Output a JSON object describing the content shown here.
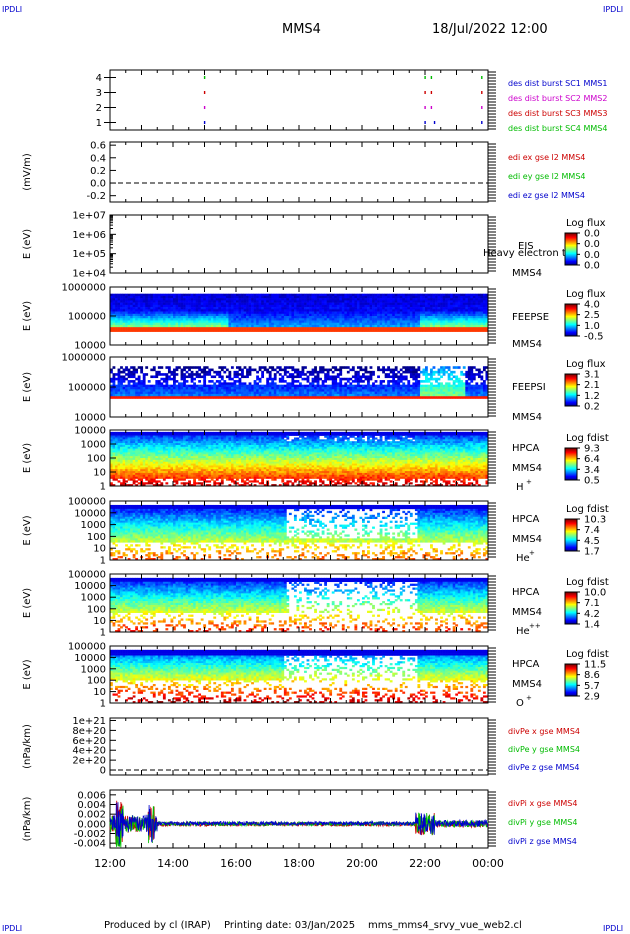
{
  "header": {
    "corner_tl": "IPDLI",
    "corner_tr": "IPDLI",
    "corner_bl": "IPDLI",
    "corner_br": "IPDLI",
    "spacecraft": "MMS4",
    "datetime": "18/Jul/2022 12:00"
  },
  "footer": {
    "produced": "Produced by cl (IRAP)",
    "printing": "Printing date: 03/Jan/2025",
    "file": "mms_mms4_srvy_vue_web2.cl"
  },
  "chart_data": [
    {
      "id": "burst",
      "type": "scatter",
      "ylabel": "",
      "ylim": [
        0.5,
        4.5
      ],
      "yticks": [
        "1",
        "2",
        "3",
        "4"
      ],
      "legend": [
        {
          "text": "des dist burst SC1 MMS1",
          "color": "#0000cc"
        },
        {
          "text": "des dist burst SC2 MMS2",
          "color": "#cc00cc"
        },
        {
          "text": "des dist burst SC3 MMS3",
          "color": "#cc0000"
        },
        {
          "text": "des dist burst SC4 MMS4",
          "color": "#00bb00"
        }
      ],
      "marks": [
        {
          "t": 15.0,
          "y": 4,
          "color": "#00bb00"
        },
        {
          "t": 15.0,
          "y": 3,
          "color": "#cc0000"
        },
        {
          "t": 15.0,
          "y": 2,
          "color": "#cc00cc"
        },
        {
          "t": 15.0,
          "y": 1,
          "color": "#0000cc"
        },
        {
          "t": 22.0,
          "y": 4,
          "color": "#00bb00"
        },
        {
          "t": 22.2,
          "y": 4,
          "color": "#00bb00"
        },
        {
          "t": 22.0,
          "y": 3,
          "color": "#cc0000"
        },
        {
          "t": 22.2,
          "y": 3,
          "color": "#cc0000"
        },
        {
          "t": 22.0,
          "y": 2,
          "color": "#cc00cc"
        },
        {
          "t": 22.2,
          "y": 2,
          "color": "#cc00cc"
        },
        {
          "t": 22.0,
          "y": 1,
          "color": "#0000cc"
        },
        {
          "t": 22.3,
          "y": 1,
          "color": "#0000cc"
        },
        {
          "t": 23.8,
          "y": 4,
          "color": "#00bb00"
        },
        {
          "t": 23.8,
          "y": 3,
          "color": "#cc0000"
        },
        {
          "t": 23.8,
          "y": 2,
          "color": "#cc00cc"
        },
        {
          "t": 23.8,
          "y": 1,
          "color": "#0000cc"
        }
      ]
    },
    {
      "id": "edi",
      "type": "line",
      "ylabel": "(mV/m)",
      "ylim": [
        -0.3,
        0.65
      ],
      "yticks": [
        "-0.2",
        "0.0",
        "0.2",
        "0.4",
        "0.6"
      ],
      "legend": [
        {
          "text": "edi ex gse l2 MMS4",
          "color": "#cc0000"
        },
        {
          "text": "edi ey gse l2 MMS4",
          "color": "#00bb00"
        },
        {
          "text": "edi ez gse l2 MMS4",
          "color": "#0000cc"
        }
      ]
    },
    {
      "id": "eis",
      "type": "heatmap",
      "ylabel": "E (eV)",
      "yticks": [
        "1e+04",
        "1e+05",
        "1e+06",
        "1e+07"
      ],
      "instrument": "EIS",
      "sc": "MMS4",
      "overlay": "Heavy electron te",
      "cbar_title": "Log flux",
      "cbar_ticks": [
        "0.0",
        "0.0",
        "0.0",
        "0.0"
      ]
    },
    {
      "id": "feepse",
      "type": "heatmap",
      "ylabel": "E (eV)",
      "yticks": [
        "10000",
        "100000",
        "1000000"
      ],
      "instrument": "FEEPSE",
      "sc": "MMS4",
      "cbar_title": "Log flux",
      "cbar_ticks": [
        "4.0",
        "2.5",
        "1.0",
        "-0.5"
      ]
    },
    {
      "id": "feepsi",
      "type": "heatmap",
      "ylabel": "E (eV)",
      "yticks": [
        "10000",
        "100000",
        "1000000"
      ],
      "instrument": "FEEPSI",
      "sc": "MMS4",
      "cbar_title": "Log flux",
      "cbar_ticks": [
        "3.1",
        "2.1",
        "1.2",
        "0.2"
      ]
    },
    {
      "id": "hpca_h",
      "type": "heatmap",
      "ylabel": "E (eV)",
      "yticks": [
        "1",
        "10",
        "100",
        "1000",
        "10000"
      ],
      "instrument": "HPCA",
      "sc": "MMS4",
      "species": "H",
      "species_sup": "+",
      "cbar_title": "Log fdist",
      "cbar_ticks": [
        "9.3",
        "6.4",
        "3.4",
        "0.5"
      ]
    },
    {
      "id": "hpca_he",
      "type": "heatmap",
      "ylabel": "E (eV)",
      "yticks": [
        "1",
        "10",
        "100",
        "1000",
        "10000",
        "100000"
      ],
      "instrument": "HPCA",
      "sc": "MMS4",
      "species": "He",
      "species_sup": "+",
      "cbar_title": "Log fdist",
      "cbar_ticks": [
        "10.3",
        "7.4",
        "4.5",
        "1.7"
      ]
    },
    {
      "id": "hpca_hepp",
      "type": "heatmap",
      "ylabel": "E (eV)",
      "yticks": [
        "1",
        "10",
        "100",
        "1000",
        "10000",
        "100000"
      ],
      "instrument": "HPCA",
      "sc": "MMS4",
      "species": "He",
      "species_sup": "++",
      "cbar_title": "Log fdist",
      "cbar_ticks": [
        "10.0",
        "7.1",
        "4.2",
        "1.4"
      ]
    },
    {
      "id": "hpca_o",
      "type": "heatmap",
      "ylabel": "E (eV)",
      "yticks": [
        "1",
        "10",
        "100",
        "1000",
        "10000",
        "100000"
      ],
      "instrument": "HPCA",
      "sc": "MMS4",
      "species": "O",
      "species_sup": "+",
      "cbar_title": "Log fdist",
      "cbar_ticks": [
        "11.5",
        "8.6",
        "5.7",
        "2.9"
      ]
    },
    {
      "id": "divpe",
      "type": "line",
      "ylabel": "(nPa/km)",
      "ylim": [
        -1e+20,
        1.05e+21
      ],
      "yticks": [
        "0",
        "2e+20",
        "4e+20",
        "6e+20",
        "8e+20",
        "1e+21"
      ],
      "legend": [
        {
          "text": "divPe x gse MMS4",
          "color": "#cc0000"
        },
        {
          "text": "divPe y gse MMS4",
          "color": "#00bb00"
        },
        {
          "text": "divPe z gse MMS4",
          "color": "#0000cc"
        }
      ]
    },
    {
      "id": "divpi",
      "type": "line",
      "ylabel": "(nPa/km)",
      "ylim": [
        -0.005,
        0.007
      ],
      "yticks": [
        "-0.004",
        "-0.002",
        "0.000",
        "0.002",
        "0.004",
        "0.006"
      ],
      "legend": [
        {
          "text": "divPi x gse MMS4",
          "color": "#cc0000"
        },
        {
          "text": "divPi y gse MMS4",
          "color": "#00bb00"
        },
        {
          "text": "divPi z gse MMS4",
          "color": "#0000cc"
        }
      ]
    }
  ],
  "time_axis": {
    "xlim": [
      12,
      24
    ],
    "ticks": [
      {
        "t": 12,
        "label": "12:00"
      },
      {
        "t": 14,
        "label": "14:00"
      },
      {
        "t": 16,
        "label": "16:00"
      },
      {
        "t": 18,
        "label": "18:00"
      },
      {
        "t": 20,
        "label": "20:00"
      },
      {
        "t": 22,
        "label": "22:00"
      },
      {
        "t": 24,
        "label": "00:00"
      }
    ]
  }
}
